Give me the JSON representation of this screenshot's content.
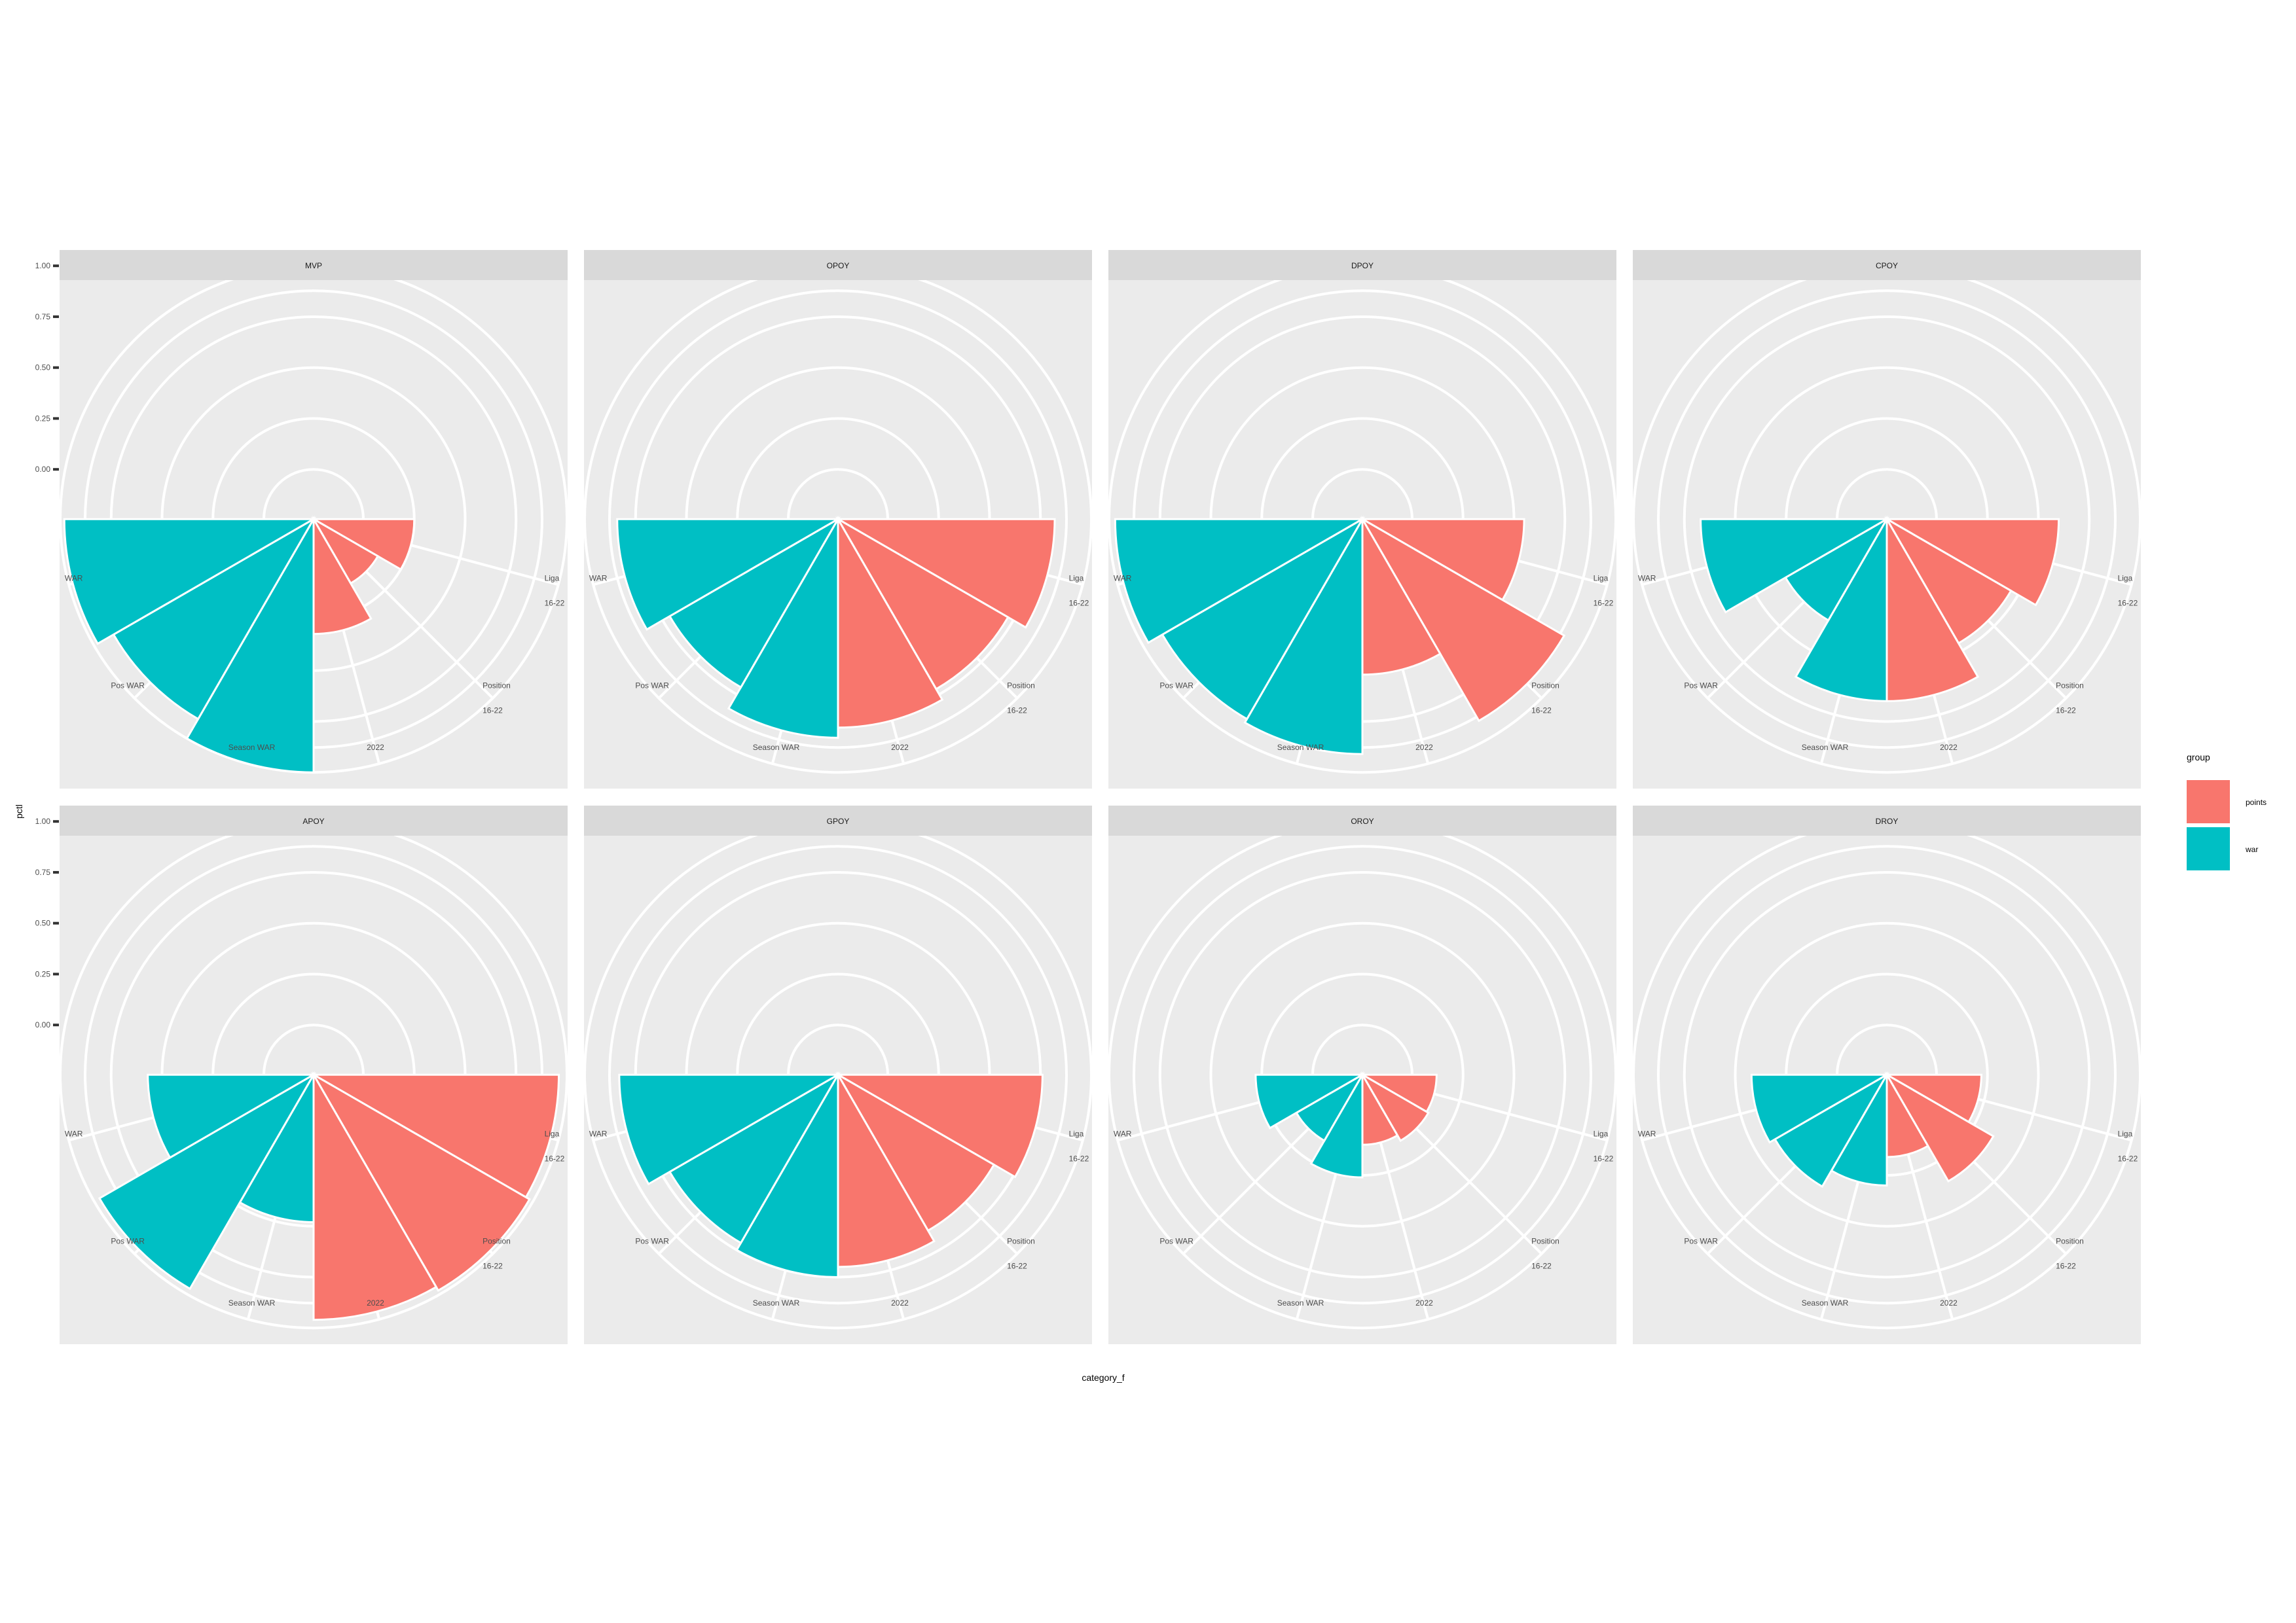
{
  "chart_data": {
    "type": "polar-bar",
    "xlabel": "category_f",
    "ylabel": "pctl",
    "y_ticks": [
      0.0,
      0.25,
      0.5,
      0.75,
      1.0
    ],
    "y_tick_labels": [
      "0.00",
      "0.25",
      "0.50",
      "0.75",
      "1.00"
    ],
    "categories": [
      "Liga 16-22",
      "Position 16-22",
      "2022",
      "Season WAR",
      "Pos WAR",
      "WAR"
    ],
    "category_label_lines": [
      [
        "Liga",
        "16-22"
      ],
      [
        "Position",
        "16-22"
      ],
      [
        "2022"
      ],
      [
        "Season WAR"
      ],
      [
        "Pos WAR"
      ],
      [
        "WAR"
      ]
    ],
    "category_group": [
      "points",
      "points",
      "points",
      "war",
      "war",
      "war"
    ],
    "legend": {
      "title": "group",
      "position": "right",
      "entries": [
        {
          "name": "points",
          "color": "#F8766D"
        },
        {
          "name": "war",
          "color": "#00BFC4"
        }
      ]
    },
    "panels": [
      {
        "title": "MVP",
        "values": [
          0.25,
          0.12,
          0.32,
          1.0,
          0.89,
          0.98
        ]
      },
      {
        "title": "OPOY",
        "values": [
          0.82,
          0.72,
          0.78,
          0.83,
          0.71,
          0.84
        ]
      },
      {
        "title": "DPOY",
        "values": [
          0.55,
          0.9,
          0.52,
          0.91,
          0.89,
          0.97
        ]
      },
      {
        "title": "CPOY",
        "values": [
          0.6,
          0.46,
          0.65,
          0.65,
          0.33,
          0.67
        ]
      },
      {
        "title": "APOY",
        "values": [
          0.96,
          0.98,
          0.96,
          0.48,
          0.97,
          0.57
        ]
      },
      {
        "title": "GPOY",
        "values": [
          0.76,
          0.64,
          0.7,
          0.75,
          0.71,
          0.83
        ]
      },
      {
        "title": "OROY",
        "values": [
          0.12,
          0.13,
          0.1,
          0.26,
          0.13,
          0.28
        ]
      },
      {
        "title": "DROY",
        "values": [
          0.22,
          0.36,
          0.16,
          0.3,
          0.39,
          0.42
        ]
      }
    ]
  }
}
